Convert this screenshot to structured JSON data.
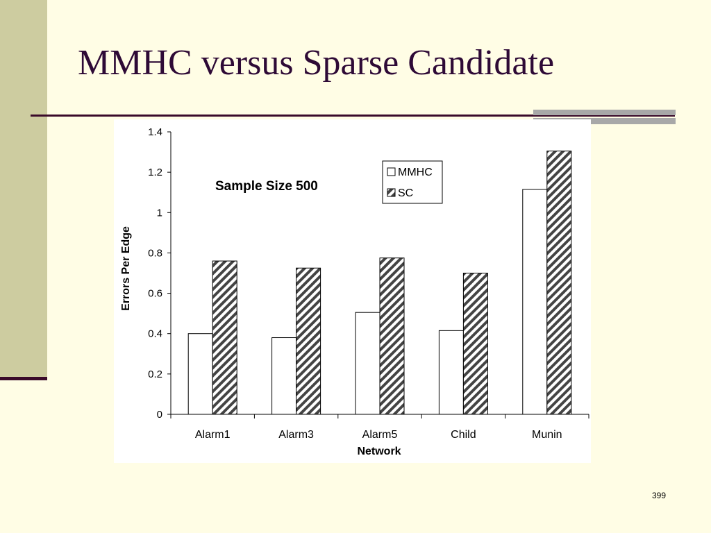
{
  "slide": {
    "title": "MMHC versus Sparse Candidate",
    "page_number": "399"
  },
  "chart_data": {
    "type": "bar",
    "annotation": "Sample Size 500",
    "xlabel": "Network",
    "ylabel": "Errors Per Edge",
    "ylim": [
      0,
      1.4
    ],
    "yticks": [
      "0",
      "0.2",
      "0.4",
      "0.6",
      "0.8",
      "1",
      "1.2",
      "1.4"
    ],
    "categories": [
      "Alarm1",
      "Alarm3",
      "Alarm5",
      "Child",
      "Munin"
    ],
    "series": [
      {
        "name": "MMHC",
        "values": [
          0.4,
          0.38,
          0.505,
          0.415,
          1.115
        ],
        "color": "#ffffff",
        "pattern": "none"
      },
      {
        "name": "SC",
        "values": [
          0.76,
          0.725,
          0.775,
          0.7,
          1.305
        ],
        "color": "#444444",
        "pattern": "diagonal-hatch"
      }
    ],
    "legend_position": "top-right",
    "grid": false
  }
}
